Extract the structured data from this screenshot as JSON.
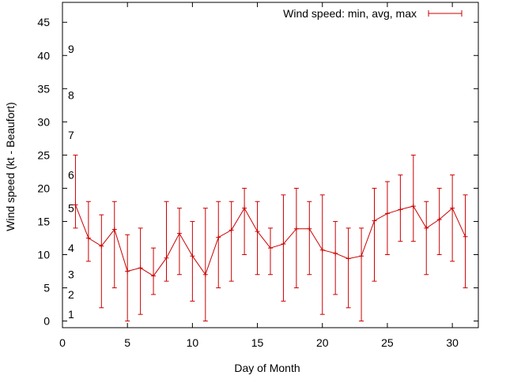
{
  "chart_data": {
    "type": "line",
    "title": "",
    "xlabel": "Day of Month",
    "ylabel": "Wind speed (kt - Beaufort)",
    "xlim": [
      0,
      32
    ],
    "ylim": [
      -1,
      48
    ],
    "x_ticks": [
      0,
      5,
      10,
      15,
      20,
      25,
      30
    ],
    "y_ticks": [
      0,
      5,
      10,
      15,
      20,
      25,
      30,
      35,
      40,
      45
    ],
    "grid": false,
    "legend_position": "top-right",
    "series_color": "#cc0000",
    "beaufort_labels": [
      {
        "label": "1",
        "y": 1
      },
      {
        "label": "2",
        "y": 4
      },
      {
        "label": "3",
        "y": 7
      },
      {
        "label": "4",
        "y": 11
      },
      {
        "label": "5",
        "y": 17
      },
      {
        "label": "6",
        "y": 22
      },
      {
        "label": "7",
        "y": 28
      },
      {
        "label": "8",
        "y": 34
      },
      {
        "label": "9",
        "y": 41
      }
    ],
    "series": [
      {
        "name": "Wind speed: min, avg, max",
        "points": [
          {
            "x": 1,
            "min": 14,
            "avg": 17.5,
            "max": 25
          },
          {
            "x": 2,
            "min": 9,
            "avg": 12.5,
            "max": 18
          },
          {
            "x": 3,
            "min": 2,
            "avg": 11.3,
            "max": 16
          },
          {
            "x": 4,
            "min": 5,
            "avg": 13.8,
            "max": 18
          },
          {
            "x": 5,
            "min": 0,
            "avg": 7.5,
            "max": 13
          },
          {
            "x": 6,
            "min": 1,
            "avg": 8.0,
            "max": 14
          },
          {
            "x": 7,
            "min": 4,
            "avg": 6.8,
            "max": 11
          },
          {
            "x": 8,
            "min": 6,
            "avg": 9.5,
            "max": 18
          },
          {
            "x": 9,
            "min": 7,
            "avg": 13.2,
            "max": 17
          },
          {
            "x": 10,
            "min": 3,
            "avg": 9.8,
            "max": 15
          },
          {
            "x": 11,
            "min": 0,
            "avg": 7.0,
            "max": 17
          },
          {
            "x": 12,
            "min": 5,
            "avg": 12.6,
            "max": 18
          },
          {
            "x": 13,
            "min": 6,
            "avg": 13.7,
            "max": 18
          },
          {
            "x": 14,
            "min": 10,
            "avg": 17.0,
            "max": 20
          },
          {
            "x": 15,
            "min": 7,
            "avg": 13.5,
            "max": 18
          },
          {
            "x": 16,
            "min": 7,
            "avg": 11.0,
            "max": 14
          },
          {
            "x": 17,
            "min": 3,
            "avg": 11.6,
            "max": 19
          },
          {
            "x": 18,
            "min": 5,
            "avg": 13.9,
            "max": 20
          },
          {
            "x": 19,
            "min": 7,
            "avg": 13.9,
            "max": 18
          },
          {
            "x": 20,
            "min": 1,
            "avg": 10.7,
            "max": 19
          },
          {
            "x": 21,
            "min": 4,
            "avg": 10.2,
            "max": 15
          },
          {
            "x": 22,
            "min": 2,
            "avg": 9.4,
            "max": 14
          },
          {
            "x": 23,
            "min": 0,
            "avg": 9.8,
            "max": 14
          },
          {
            "x": 24,
            "min": 6,
            "avg": 15.1,
            "max": 20
          },
          {
            "x": 25,
            "min": 10,
            "avg": 16.2,
            "max": 21
          },
          {
            "x": 26,
            "min": 12,
            "avg": 16.8,
            "max": 22
          },
          {
            "x": 27,
            "min": 12,
            "avg": 17.3,
            "max": 25
          },
          {
            "x": 28,
            "min": 7,
            "avg": 14.0,
            "max": 18
          },
          {
            "x": 29,
            "min": 10,
            "avg": 15.3,
            "max": 20
          },
          {
            "x": 30,
            "min": 9,
            "avg": 17.0,
            "max": 22
          },
          {
            "x": 31,
            "min": 5,
            "avg": 12.7,
            "max": 19
          }
        ]
      }
    ]
  }
}
